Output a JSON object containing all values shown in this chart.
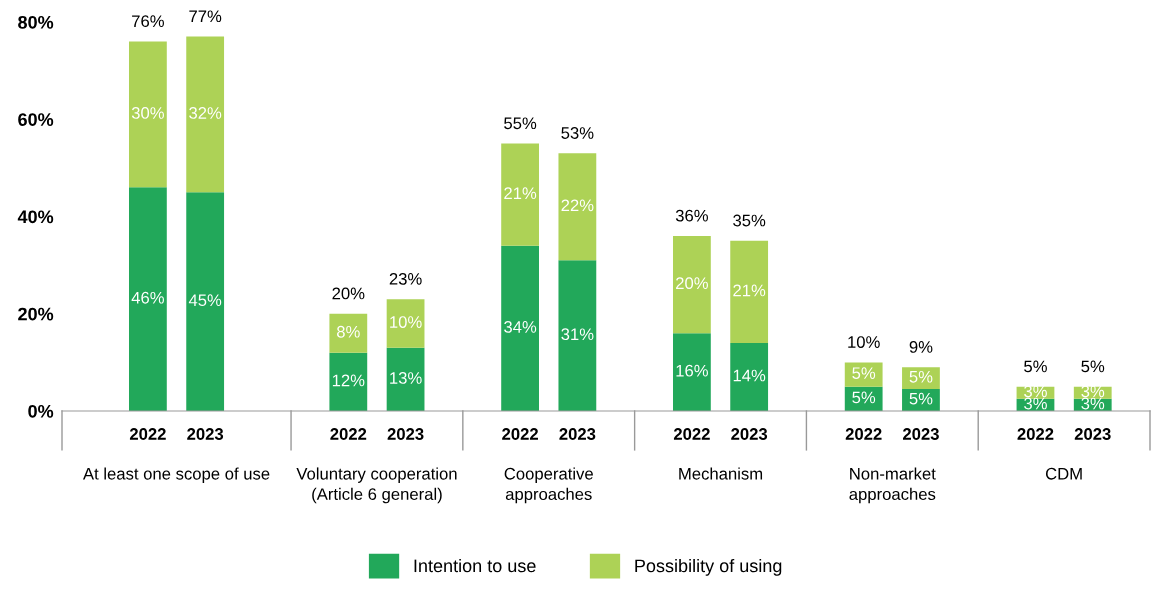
{
  "chart_data": {
    "type": "bar",
    "stacked": true,
    "categories": [
      "2022",
      "2023",
      "2022",
      "2023",
      "2022",
      "2023",
      "2022",
      "2023",
      "2022",
      "2023",
      "2022",
      "2023"
    ],
    "series": [
      {
        "name": "Intention to use",
        "color": "#22a85a",
        "values": [
          46,
          45,
          12,
          13,
          34,
          31,
          16,
          14,
          5,
          4.5,
          2.5,
          2.5
        ],
        "value_labels": [
          "46%",
          "45%",
          "12%",
          "13%",
          "34%",
          "31%",
          "16%",
          "14%",
          "5%",
          "5%",
          "3%",
          "3%"
        ]
      },
      {
        "name": "Possibility of using",
        "color": "#add256",
        "values": [
          30,
          32,
          8,
          10,
          21,
          22,
          20,
          21,
          5,
          4.5,
          2.5,
          2.5
        ],
        "value_labels": [
          "30%",
          "32%",
          "8%",
          "10%",
          "21%",
          "22%",
          "20%",
          "21%",
          "5%",
          "5%",
          "3%",
          "3%"
        ]
      }
    ],
    "totals": [
      "76%",
      "77%",
      "20%",
      "23%",
      "55%",
      "53%",
      "36%",
      "35%",
      "10%",
      "9%",
      "5%",
      "5%"
    ],
    "annotations": [
      "At least one scope of use",
      "Voluntary cooperation\n(Article 6 general)",
      "Cooperative\napproaches",
      "Mechanism",
      "Non-market\napproaches",
      "CDM"
    ],
    "ylim": [
      0,
      80
    ],
    "yticks": [
      {
        "value": 0,
        "label": "0%"
      },
      {
        "value": 20,
        "label": "20%"
      },
      {
        "value": 40,
        "label": "40%"
      },
      {
        "value": 60,
        "label": "60%"
      },
      {
        "value": 80,
        "label": "80%"
      }
    ],
    "grid": false,
    "legend": "bottom"
  }
}
